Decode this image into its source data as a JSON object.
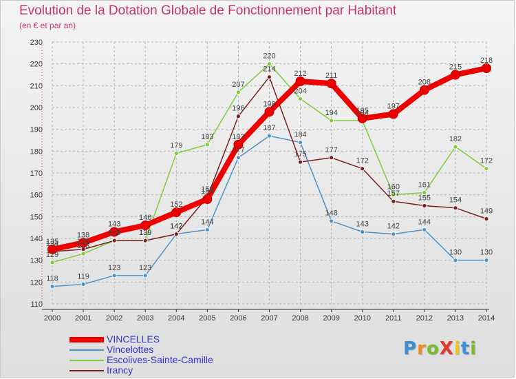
{
  "title": "Evolution de la Dotation Globale de Fonctionnement par Habitant",
  "subtitle": "(en € et par an)",
  "logo": {
    "text": "ProXiti",
    "letter_colors": [
      "#3c8fd6",
      "#f08a1c",
      "#7abf2b",
      "#e03a2c",
      "#f0c419",
      "#3c8fd6",
      "#7abf2b"
    ]
  },
  "chart_data": {
    "type": "line",
    "x": [
      "2000",
      "2001",
      "2002",
      "2003",
      "2004",
      "2005",
      "2006",
      "2007",
      "2008",
      "2009",
      "2010",
      "2011",
      "2012",
      "2013",
      "2014"
    ],
    "ylim": [
      110,
      230
    ],
    "yticks": [
      110,
      120,
      130,
      140,
      150,
      160,
      170,
      180,
      190,
      200,
      210,
      220,
      230
    ],
    "grid": true,
    "legend_position": "bottom-left",
    "series": [
      {
        "name": "VINCELLES",
        "color": "#ee0000",
        "values": [
          135,
          138,
          143,
          146,
          152,
          158,
          183,
          198,
          212,
          211,
          195,
          197,
          208,
          215,
          218
        ]
      },
      {
        "name": "Vincelottes",
        "color": "#4f93c6",
        "values": [
          118,
          119,
          123,
          123,
          142,
          144,
          177,
          187,
          184,
          148,
          143,
          142,
          144,
          130,
          130
        ]
      },
      {
        "name": "Escolives-Sainte-Camille",
        "color": "#7ccb3a",
        "values": [
          129,
          133,
          139,
          139,
          179,
          183,
          207,
          220,
          204,
          194,
          194,
          160,
          161,
          182,
          172
        ]
      },
      {
        "name": "Irancy",
        "color": "#7a1f1f",
        "values": [
          134,
          135,
          139,
          139,
          142,
          159,
          196,
          214,
          175,
          177,
          172,
          157,
          155,
          154,
          149
        ]
      }
    ]
  }
}
